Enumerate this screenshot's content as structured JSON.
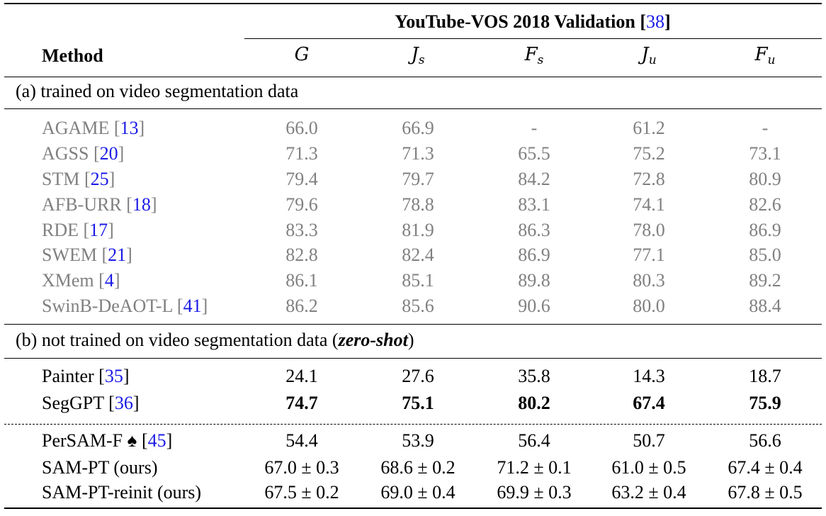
{
  "header": {
    "dataset_title": "YouTube-VOS 2018 Validation",
    "dataset_ref": "38",
    "method_label": "Method",
    "columns": [
      {
        "sym": "G",
        "sub": ""
      },
      {
        "sym": "J",
        "sub": "s"
      },
      {
        "sym": "F",
        "sub": "s"
      },
      {
        "sym": "J",
        "sub": "u"
      },
      {
        "sym": "F",
        "sub": "u"
      }
    ]
  },
  "sections": {
    "a": "(a) trained on video segmentation data",
    "b_prefix": "(b) not trained on video segmentation data (",
    "b_em": "zero-shot",
    "b_suffix": ")"
  },
  "rows_a": [
    {
      "name": "AGAME",
      "ref": "13",
      "vals": [
        "66.0",
        "66.9",
        "-",
        "61.2",
        "-"
      ]
    },
    {
      "name": "AGSS",
      "ref": "20",
      "vals": [
        "71.3",
        "71.3",
        "65.5",
        "75.2",
        "73.1"
      ]
    },
    {
      "name": "STM",
      "ref": "25",
      "vals": [
        "79.4",
        "79.7",
        "84.2",
        "72.8",
        "80.9"
      ]
    },
    {
      "name": "AFB-URR",
      "ref": "18",
      "vals": [
        "79.6",
        "78.8",
        "83.1",
        "74.1",
        "82.6"
      ]
    },
    {
      "name": "RDE",
      "ref": "17",
      "vals": [
        "83.3",
        "81.9",
        "86.3",
        "78.0",
        "86.9"
      ]
    },
    {
      "name": "SWEM",
      "ref": "21",
      "vals": [
        "82.8",
        "82.4",
        "86.9",
        "77.1",
        "85.0"
      ]
    },
    {
      "name": "XMem",
      "ref": "4",
      "vals": [
        "86.1",
        "85.1",
        "89.8",
        "80.3",
        "89.2"
      ]
    },
    {
      "name": "SwinB-DeAOT-L",
      "ref": "41",
      "vals": [
        "86.2",
        "85.6",
        "90.6",
        "80.0",
        "88.4"
      ]
    }
  ],
  "rows_b1": [
    {
      "name": "Painter",
      "ref": "35",
      "vals": [
        "24.1",
        "27.6",
        "35.8",
        "14.3",
        "18.7"
      ]
    },
    {
      "name": "SegGPT",
      "ref": "36",
      "vals": [
        "74.7",
        "75.1",
        "80.2",
        "67.4",
        "75.9"
      ]
    }
  ],
  "rows_b2": [
    {
      "name": "PerSAM-F ♠",
      "ref": "45",
      "vals": [
        "54.4",
        "53.9",
        "56.4",
        "50.7",
        "56.6"
      ]
    },
    {
      "name": "SAM-PT (ours)",
      "ref": "",
      "vals": [
        "67.0 ± 0.3",
        "68.6 ± 0.2",
        "71.2 ± 0.1",
        "61.0 ± 0.5",
        "67.4 ± 0.4"
      ]
    },
    {
      "name": "SAM-PT-reinit (ours)",
      "ref": "",
      "vals": [
        "67.5 ± 0.2",
        "69.0 ± 0.4",
        "69.9 ± 0.3",
        "63.2 ± 0.4",
        "67.8 ± 0.5"
      ]
    }
  ]
}
